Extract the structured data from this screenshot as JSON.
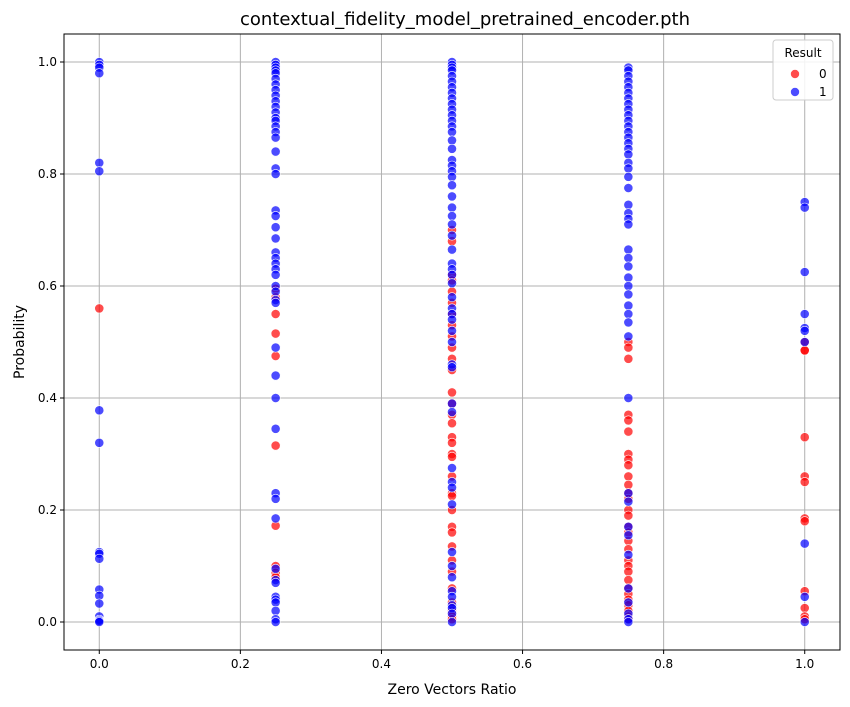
{
  "chart_data": {
    "type": "scatter",
    "title": "contextual_fidelity_model_pretrained_encoder.pth",
    "xlabel": "Zero Vectors Ratio",
    "ylabel": "Probability",
    "xlim": [
      -0.05,
      1.05
    ],
    "ylim": [
      -0.05,
      1.05
    ],
    "xticks": [
      0.0,
      0.2,
      0.4,
      0.6,
      0.8,
      1.0
    ],
    "xtick_labels": [
      "0.0",
      "0.2",
      "0.4",
      "0.6",
      "0.8",
      "1.0"
    ],
    "yticks": [
      0.0,
      0.2,
      0.4,
      0.6,
      0.8,
      1.0
    ],
    "ytick_labels": [
      "0.0",
      "0.2",
      "0.4",
      "0.6",
      "0.8",
      "1.0"
    ],
    "grid": true,
    "legend": {
      "title": "Result",
      "placement": "top-right"
    },
    "series": [
      {
        "name": "0",
        "color": "#ff0000",
        "points": [
          [
            0.0,
            0.56
          ],
          [
            0.25,
            0.595
          ],
          [
            0.25,
            0.58
          ],
          [
            0.25,
            0.55
          ],
          [
            0.25,
            0.515
          ],
          [
            0.25,
            0.475
          ],
          [
            0.25,
            0.315
          ],
          [
            0.25,
            0.172
          ],
          [
            0.25,
            0.1
          ],
          [
            0.25,
            0.088
          ],
          [
            0.25,
            0.08
          ],
          [
            0.5,
            0.7
          ],
          [
            0.5,
            0.68
          ],
          [
            0.5,
            0.62
          ],
          [
            0.5,
            0.61
          ],
          [
            0.5,
            0.59
          ],
          [
            0.5,
            0.57
          ],
          [
            0.5,
            0.55
          ],
          [
            0.5,
            0.53
          ],
          [
            0.5,
            0.51
          ],
          [
            0.5,
            0.49
          ],
          [
            0.5,
            0.47
          ],
          [
            0.5,
            0.45
          ],
          [
            0.5,
            0.41
          ],
          [
            0.5,
            0.39
          ],
          [
            0.5,
            0.37
          ],
          [
            0.5,
            0.355
          ],
          [
            0.5,
            0.33
          ],
          [
            0.5,
            0.32
          ],
          [
            0.5,
            0.3
          ],
          [
            0.5,
            0.295
          ],
          [
            0.5,
            0.26
          ],
          [
            0.5,
            0.23
          ],
          [
            0.5,
            0.225
          ],
          [
            0.5,
            0.2
          ],
          [
            0.5,
            0.17
          ],
          [
            0.5,
            0.16
          ],
          [
            0.5,
            0.135
          ],
          [
            0.5,
            0.11
          ],
          [
            0.5,
            0.09
          ],
          [
            0.5,
            0.06
          ],
          [
            0.5,
            0.035
          ],
          [
            0.5,
            0.02
          ],
          [
            0.5,
            0.01
          ],
          [
            0.5,
            0.005
          ],
          [
            0.75,
            0.5
          ],
          [
            0.75,
            0.49
          ],
          [
            0.75,
            0.47
          ],
          [
            0.75,
            0.37
          ],
          [
            0.75,
            0.36
          ],
          [
            0.75,
            0.34
          ],
          [
            0.75,
            0.3
          ],
          [
            0.75,
            0.29
          ],
          [
            0.75,
            0.28
          ],
          [
            0.75,
            0.26
          ],
          [
            0.75,
            0.245
          ],
          [
            0.75,
            0.23
          ],
          [
            0.75,
            0.22
          ],
          [
            0.75,
            0.2
          ],
          [
            0.75,
            0.19
          ],
          [
            0.75,
            0.17
          ],
          [
            0.75,
            0.16
          ],
          [
            0.75,
            0.145
          ],
          [
            0.75,
            0.13
          ],
          [
            0.75,
            0.11
          ],
          [
            0.75,
            0.1
          ],
          [
            0.75,
            0.09
          ],
          [
            0.75,
            0.075
          ],
          [
            0.75,
            0.06
          ],
          [
            0.75,
            0.05
          ],
          [
            0.75,
            0.04
          ],
          [
            0.75,
            0.03
          ],
          [
            0.75,
            0.02
          ],
          [
            0.75,
            0.01
          ],
          [
            0.75,
            0.005
          ],
          [
            1.0,
            0.5
          ],
          [
            1.0,
            0.485
          ],
          [
            1.0,
            0.485
          ],
          [
            1.0,
            0.33
          ],
          [
            1.0,
            0.26
          ],
          [
            1.0,
            0.25
          ],
          [
            1.0,
            0.185
          ],
          [
            1.0,
            0.18
          ],
          [
            1.0,
            0.055
          ],
          [
            1.0,
            0.025
          ],
          [
            1.0,
            0.01
          ],
          [
            1.0,
            0.005
          ]
        ]
      },
      {
        "name": "1",
        "color": "#0000ff",
        "points": [
          [
            0.0,
            1.0
          ],
          [
            0.0,
            0.995
          ],
          [
            0.0,
            0.99
          ],
          [
            0.0,
            0.98
          ],
          [
            0.0,
            0.82
          ],
          [
            0.0,
            0.805
          ],
          [
            0.0,
            0.378
          ],
          [
            0.0,
            0.32
          ],
          [
            0.0,
            0.125
          ],
          [
            0.0,
            0.122
          ],
          [
            0.0,
            0.113
          ],
          [
            0.0,
            0.058
          ],
          [
            0.0,
            0.047
          ],
          [
            0.0,
            0.033
          ],
          [
            0.0,
            0.01
          ],
          [
            0.0,
            0.004
          ],
          [
            0.0,
            0.002
          ],
          [
            0.0,
            0.0
          ],
          [
            0.25,
            1.0
          ],
          [
            0.25,
            0.995
          ],
          [
            0.25,
            0.99
          ],
          [
            0.25,
            0.985
          ],
          [
            0.25,
            0.98
          ],
          [
            0.25,
            0.97
          ],
          [
            0.25,
            0.96
          ],
          [
            0.25,
            0.95
          ],
          [
            0.25,
            0.94
          ],
          [
            0.25,
            0.93
          ],
          [
            0.25,
            0.92
          ],
          [
            0.25,
            0.91
          ],
          [
            0.25,
            0.9
          ],
          [
            0.25,
            0.895
          ],
          [
            0.25,
            0.885
          ],
          [
            0.25,
            0.875
          ],
          [
            0.25,
            0.865
          ],
          [
            0.25,
            0.84
          ],
          [
            0.25,
            0.81
          ],
          [
            0.25,
            0.8
          ],
          [
            0.25,
            0.735
          ],
          [
            0.25,
            0.725
          ],
          [
            0.25,
            0.705
          ],
          [
            0.25,
            0.685
          ],
          [
            0.25,
            0.66
          ],
          [
            0.25,
            0.65
          ],
          [
            0.25,
            0.64
          ],
          [
            0.25,
            0.63
          ],
          [
            0.25,
            0.62
          ],
          [
            0.25,
            0.6
          ],
          [
            0.25,
            0.59
          ],
          [
            0.25,
            0.575
          ],
          [
            0.25,
            0.57
          ],
          [
            0.25,
            0.49
          ],
          [
            0.25,
            0.44
          ],
          [
            0.25,
            0.4
          ],
          [
            0.25,
            0.345
          ],
          [
            0.25,
            0.23
          ],
          [
            0.25,
            0.22
          ],
          [
            0.25,
            0.185
          ],
          [
            0.25,
            0.095
          ],
          [
            0.25,
            0.075
          ],
          [
            0.25,
            0.07
          ],
          [
            0.25,
            0.045
          ],
          [
            0.25,
            0.04
          ],
          [
            0.25,
            0.035
          ],
          [
            0.25,
            0.02
          ],
          [
            0.25,
            0.005
          ],
          [
            0.25,
            0.0
          ],
          [
            0.5,
            1.0
          ],
          [
            0.5,
            0.995
          ],
          [
            0.5,
            0.99
          ],
          [
            0.5,
            0.985
          ],
          [
            0.5,
            0.975
          ],
          [
            0.5,
            0.965
          ],
          [
            0.5,
            0.955
          ],
          [
            0.5,
            0.945
          ],
          [
            0.5,
            0.935
          ],
          [
            0.5,
            0.925
          ],
          [
            0.5,
            0.915
          ],
          [
            0.5,
            0.905
          ],
          [
            0.5,
            0.895
          ],
          [
            0.5,
            0.885
          ],
          [
            0.5,
            0.875
          ],
          [
            0.5,
            0.86
          ],
          [
            0.5,
            0.845
          ],
          [
            0.5,
            0.825
          ],
          [
            0.5,
            0.815
          ],
          [
            0.5,
            0.805
          ],
          [
            0.5,
            0.795
          ],
          [
            0.5,
            0.78
          ],
          [
            0.5,
            0.76
          ],
          [
            0.5,
            0.74
          ],
          [
            0.5,
            0.725
          ],
          [
            0.5,
            0.71
          ],
          [
            0.5,
            0.69
          ],
          [
            0.5,
            0.665
          ],
          [
            0.5,
            0.64
          ],
          [
            0.5,
            0.63
          ],
          [
            0.5,
            0.62
          ],
          [
            0.5,
            0.605
          ],
          [
            0.5,
            0.58
          ],
          [
            0.5,
            0.56
          ],
          [
            0.5,
            0.55
          ],
          [
            0.5,
            0.54
          ],
          [
            0.5,
            0.52
          ],
          [
            0.5,
            0.5
          ],
          [
            0.5,
            0.46
          ],
          [
            0.5,
            0.455
          ],
          [
            0.5,
            0.39
          ],
          [
            0.5,
            0.375
          ],
          [
            0.5,
            0.275
          ],
          [
            0.5,
            0.25
          ],
          [
            0.5,
            0.24
          ],
          [
            0.5,
            0.21
          ],
          [
            0.5,
            0.125
          ],
          [
            0.5,
            0.1
          ],
          [
            0.5,
            0.08
          ],
          [
            0.5,
            0.055
          ],
          [
            0.5,
            0.045
          ],
          [
            0.5,
            0.03
          ],
          [
            0.5,
            0.025
          ],
          [
            0.5,
            0.015
          ],
          [
            0.5,
            0.0
          ],
          [
            0.75,
            0.99
          ],
          [
            0.75,
            0.985
          ],
          [
            0.75,
            0.975
          ],
          [
            0.75,
            0.965
          ],
          [
            0.75,
            0.955
          ],
          [
            0.75,
            0.945
          ],
          [
            0.75,
            0.935
          ],
          [
            0.75,
            0.925
          ],
          [
            0.75,
            0.915
          ],
          [
            0.75,
            0.905
          ],
          [
            0.75,
            0.895
          ],
          [
            0.75,
            0.885
          ],
          [
            0.75,
            0.875
          ],
          [
            0.75,
            0.865
          ],
          [
            0.75,
            0.855
          ],
          [
            0.75,
            0.845
          ],
          [
            0.75,
            0.835
          ],
          [
            0.75,
            0.82
          ],
          [
            0.75,
            0.81
          ],
          [
            0.75,
            0.795
          ],
          [
            0.75,
            0.775
          ],
          [
            0.75,
            0.745
          ],
          [
            0.75,
            0.73
          ],
          [
            0.75,
            0.72
          ],
          [
            0.75,
            0.71
          ],
          [
            0.75,
            0.665
          ],
          [
            0.75,
            0.65
          ],
          [
            0.75,
            0.635
          ],
          [
            0.75,
            0.615
          ],
          [
            0.75,
            0.6
          ],
          [
            0.75,
            0.585
          ],
          [
            0.75,
            0.565
          ],
          [
            0.75,
            0.55
          ],
          [
            0.75,
            0.535
          ],
          [
            0.75,
            0.51
          ],
          [
            0.75,
            0.4
          ],
          [
            0.75,
            0.23
          ],
          [
            0.75,
            0.215
          ],
          [
            0.75,
            0.17
          ],
          [
            0.75,
            0.155
          ],
          [
            0.75,
            0.12
          ],
          [
            0.75,
            0.06
          ],
          [
            0.75,
            0.035
          ],
          [
            0.75,
            0.015
          ],
          [
            0.75,
            0.005
          ],
          [
            0.75,
            0.0
          ],
          [
            1.0,
            0.75
          ],
          [
            1.0,
            0.74
          ],
          [
            1.0,
            0.625
          ],
          [
            1.0,
            0.55
          ],
          [
            1.0,
            0.525
          ],
          [
            1.0,
            0.52
          ],
          [
            1.0,
            0.5
          ],
          [
            1.0,
            0.14
          ],
          [
            1.0,
            0.045
          ],
          [
            1.0,
            0.0
          ]
        ]
      }
    ]
  }
}
